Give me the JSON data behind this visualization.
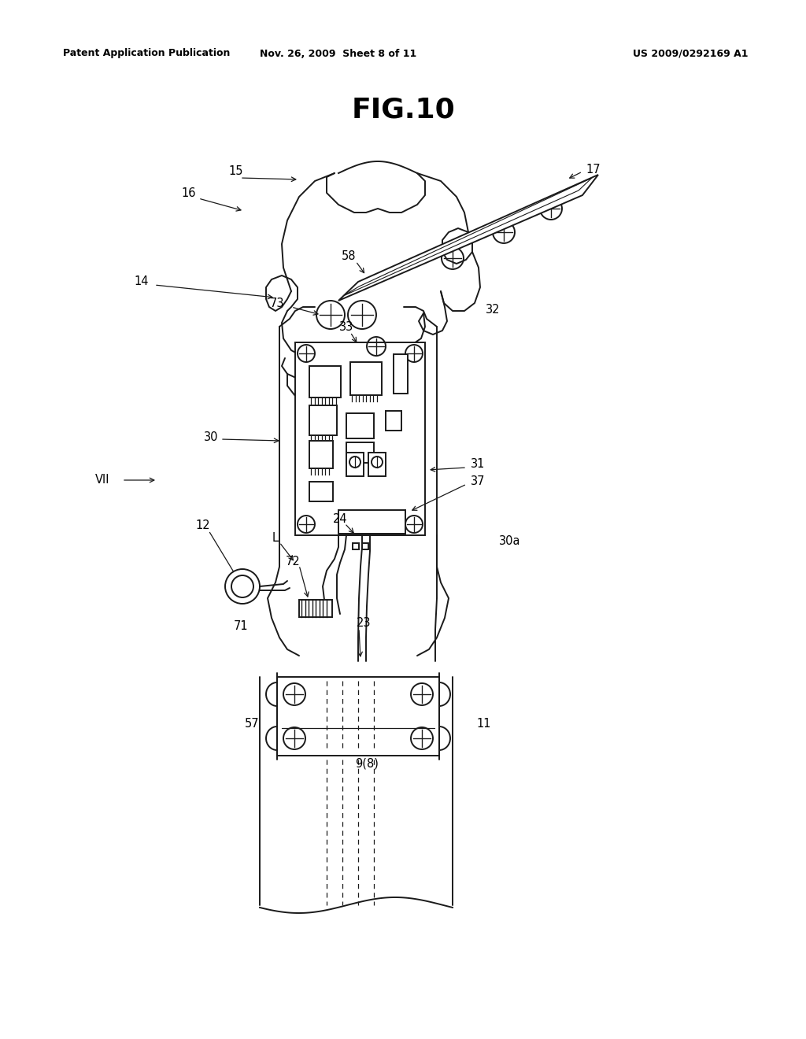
{
  "bg_color": "#ffffff",
  "line_color": "#1a1a1a",
  "title": "FIG.10",
  "header_left": "Patent Application Publication",
  "header_mid": "Nov. 26, 2009  Sheet 8 of 11",
  "header_right": "US 2009/0292169 A1",
  "figsize": [
    10.24,
    13.2
  ],
  "dpi": 100
}
